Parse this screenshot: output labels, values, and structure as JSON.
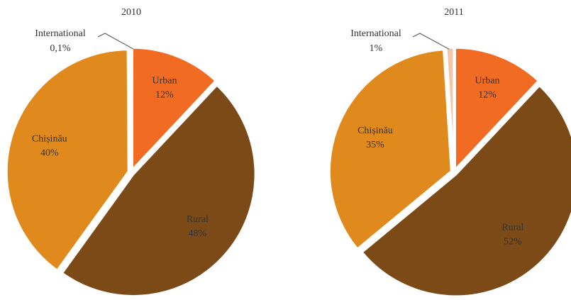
{
  "chart_data": [
    {
      "type": "pie",
      "title": "2010",
      "categories": [
        "Urban",
        "Rural",
        "Chișinău",
        "International"
      ],
      "values": [
        12,
        48,
        40,
        0.1
      ],
      "value_labels": [
        "12%",
        "48%",
        "40%",
        "0,1%"
      ],
      "colors": [
        "#f26b23",
        "#7b4a17",
        "#e08a1e",
        "#f5c6a5"
      ]
    },
    {
      "type": "pie",
      "title": "2011",
      "categories": [
        "Urban",
        "Rural",
        "Chișinău",
        "International"
      ],
      "values": [
        12,
        52,
        35,
        1
      ],
      "value_labels": [
        "12%",
        "52%",
        "35%",
        "1%"
      ],
      "colors": [
        "#f26b23",
        "#7b4a17",
        "#e08a1e",
        "#f5c6a5"
      ]
    }
  ]
}
